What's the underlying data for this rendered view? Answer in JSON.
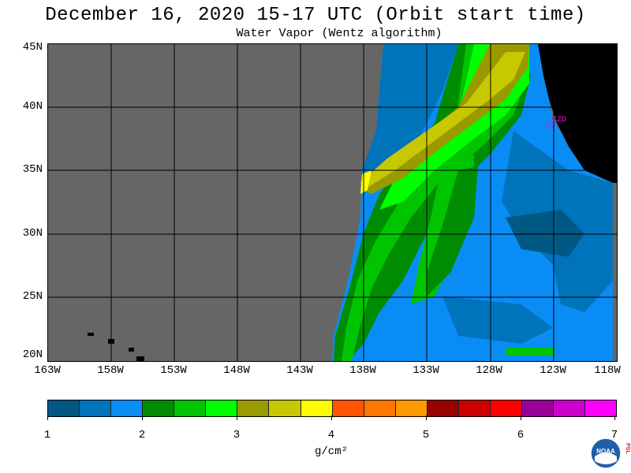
{
  "title": "December 16, 2020  15-17 UTC  (Orbit start time)",
  "subtitle": "Water Vapor (Wentz algorithm)",
  "map": {
    "latitude_labels": [
      "45N",
      "40N",
      "35N",
      "30N",
      "25N",
      "20N"
    ],
    "longitude_labels": [
      "163W",
      "158W",
      "153W",
      "148W",
      "143W",
      "138W",
      "133W",
      "128W",
      "123W",
      "118W"
    ],
    "station_label": "CZD",
    "colors": {
      "no_data": "#666666",
      "land": "#000000",
      "grid": "#000000",
      "station": "#ff00ff"
    }
  },
  "colorbar": {
    "tick_labels": [
      "1",
      "2",
      "3",
      "4",
      "5",
      "6",
      "7"
    ],
    "units": "g/cm²",
    "colors": [
      "#005984",
      "#0074bb",
      "#0a8cf5",
      "#008c00",
      "#00c400",
      "#00ff00",
      "#999900",
      "#c8c800",
      "#ffff00",
      "#ff5500",
      "#ff7700",
      "#ff9900",
      "#990000",
      "#cc0000",
      "#ff0000",
      "#990099",
      "#cc00cc",
      "#ff00ff"
    ]
  },
  "logo": {
    "icon": "noaa-logo-icon",
    "text": "NOAA",
    "side_text": "PSL"
  }
}
